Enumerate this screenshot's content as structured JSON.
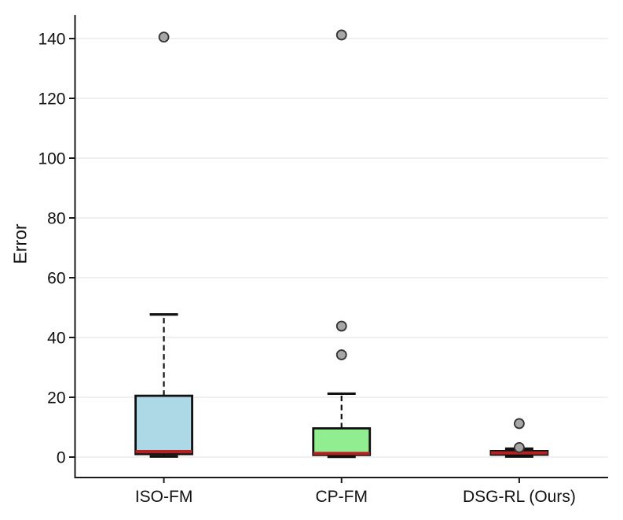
{
  "chart_data": {
    "type": "boxplot",
    "title": "",
    "ylabel": "Error",
    "xlabel": "",
    "categories": [
      "ISO-FM",
      "CP-FM",
      "DSG-RL (Ours)"
    ],
    "yticks": [
      0,
      20,
      40,
      60,
      80,
      100,
      120,
      140
    ],
    "ylim": [
      -7,
      148
    ],
    "grid": true,
    "legend": false,
    "series": [
      {
        "label": "ISO-FM",
        "whisker_low": 0.2,
        "q1": 1.0,
        "median": 1.8,
        "q3": 20.5,
        "whisker_high": 47.7,
        "outliers": [
          140.5
        ],
        "fill": "#ADD8E6"
      },
      {
        "label": "CP-FM",
        "whisker_low": 0.1,
        "q1": 0.7,
        "median": 1.2,
        "q3": 9.6,
        "whisker_high": 21.2,
        "outliers": [
          34.2,
          43.8,
          141.2
        ],
        "fill": "#90EE90"
      },
      {
        "label": "DSG-RL (Ours)",
        "whisker_low": 0.2,
        "q1": 0.8,
        "median": 1.4,
        "q3": 2.0,
        "whisker_high": 2.8,
        "outliers": [
          3.2,
          11.2
        ],
        "fill": "#F08080"
      }
    ],
    "style": {
      "median_color": "#B22222",
      "box_edge_color": "#111111",
      "whisker_color": "#111111",
      "cap_color": "#111111",
      "outlier_fill": "#A6A6A6",
      "outlier_edge": "#333333",
      "grid_color": "#E6E6E6",
      "spine_color": "#1A1A1A",
      "tick_label_color": "#111111",
      "background": "#FFFFFF"
    }
  }
}
